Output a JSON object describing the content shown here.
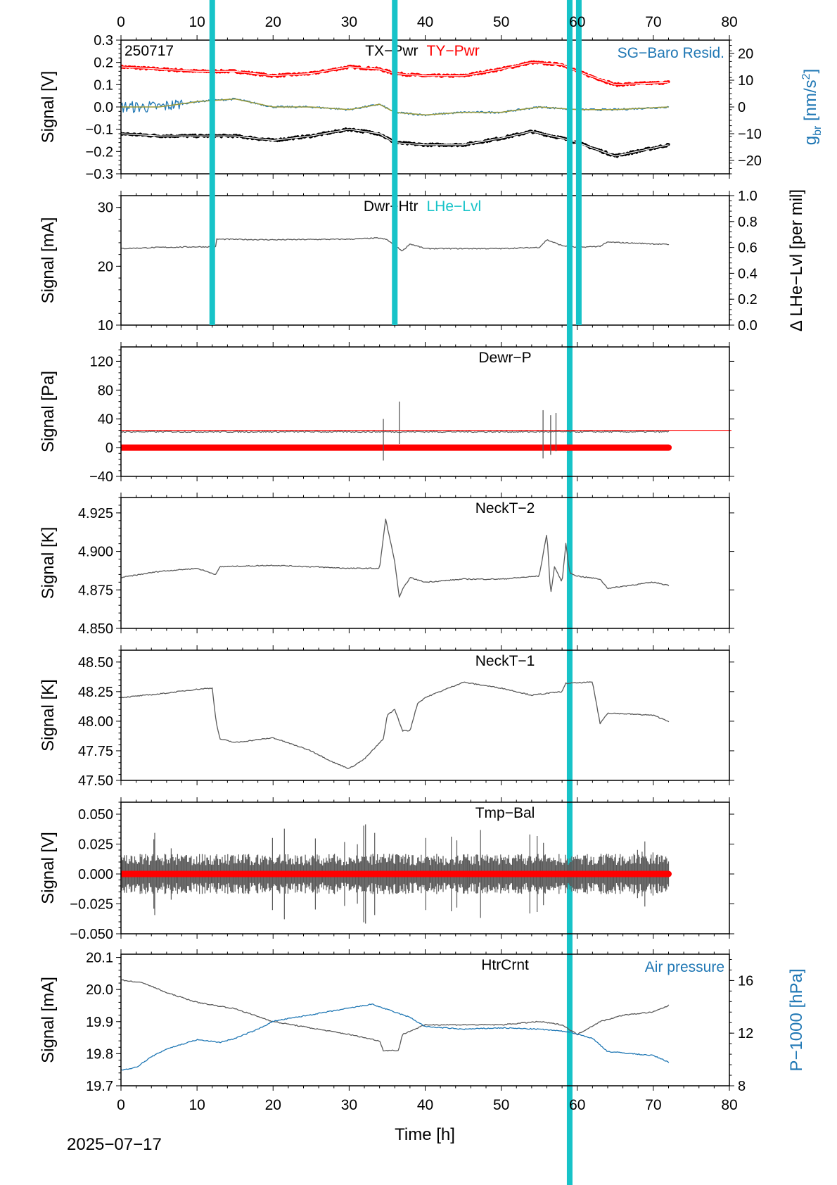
{
  "date_label": "2025−07−17",
  "time_label": "Time [h]",
  "x_ticks": [
    "0",
    "10",
    "20",
    "30",
    "40",
    "50",
    "60",
    "70",
    "80"
  ],
  "colors": {
    "black": "#000000",
    "red": "#ff0000",
    "blue": "#1f77b4",
    "cyan": "#17c3c8",
    "gray": "#5a5a5a",
    "olive": "#9a9a3a"
  },
  "chart_data": [
    {
      "type": "line",
      "id": "p1",
      "title": "TX−Pwr",
      "title2": "TY−Pwr",
      "stamp": "250717",
      "right_note": "SG−Baro Resid.",
      "ylabel": "Signal [V]",
      "ylabel_right": "g_br [nm/s^2]",
      "ylabel_right_main": "g",
      "ylabel_right_sub": "br",
      "ylabel_right_unit": " [nm/s",
      "ylabel_right_sup": "2",
      "ylabel_right_end": "]",
      "ylim": [
        -0.3,
        0.3
      ],
      "yticks": [
        "0.3",
        "0.2",
        "0.1",
        "0.0",
        "−0.1",
        "−0.2",
        "−0.3"
      ],
      "ylim_right": [
        -25,
        25
      ],
      "yticks_right": [
        "20",
        "10",
        "0",
        "−10",
        "−20"
      ],
      "xlim": [
        0,
        80
      ],
      "series": [
        {
          "name": "TY−Pwr",
          "color": "red",
          "x": [
            0,
            5,
            10,
            15,
            20,
            25,
            30,
            34,
            36,
            40,
            45,
            50,
            54,
            58,
            60,
            65,
            72
          ],
          "y": [
            0.18,
            0.17,
            0.16,
            0.16,
            0.14,
            0.15,
            0.18,
            0.17,
            0.15,
            0.14,
            0.14,
            0.17,
            0.2,
            0.19,
            0.16,
            0.1,
            0.11
          ]
        },
        {
          "name": "TX−Pwr",
          "color": "black",
          "x": [
            0,
            5,
            10,
            15,
            20,
            25,
            30,
            34,
            36,
            40,
            45,
            50,
            54,
            58,
            60,
            65,
            72
          ],
          "y": [
            -0.12,
            -0.13,
            -0.13,
            -0.13,
            -0.15,
            -0.13,
            -0.1,
            -0.12,
            -0.16,
            -0.17,
            -0.17,
            -0.14,
            -0.11,
            -0.14,
            -0.16,
            -0.22,
            -0.17
          ]
        },
        {
          "name": "SG−Baro Resid.",
          "color": "blue",
          "axis": "right",
          "x": [
            0,
            2,
            5,
            10,
            15,
            20,
            25,
            30,
            34,
            36,
            40,
            45,
            50,
            55,
            60,
            65,
            72
          ],
          "y": [
            0,
            0,
            0,
            2,
            3,
            0,
            0,
            -1,
            1,
            -2,
            -3,
            -2,
            -2,
            0,
            -1,
            -1,
            0
          ]
        }
      ]
    },
    {
      "type": "line",
      "id": "p2",
      "title": "Dwr−Htr",
      "title2": "LHe−Lvl",
      "ylabel": "Signal [mA]",
      "ylabel_right": "Δ LHe−Lvl [per mil]",
      "ylim": [
        10,
        32
      ],
      "yticks": [
        "30",
        "20",
        "10"
      ],
      "ylim_right": [
        0,
        1
      ],
      "yticks_right": [
        "1.0",
        "0.8",
        "0.6",
        "0.4",
        "0.2",
        "0.0"
      ],
      "xlim": [
        0,
        80
      ],
      "series": [
        {
          "name": "Dwr−Htr",
          "color": "gray",
          "x": [
            0,
            5,
            10,
            12.5,
            12.6,
            20,
            30,
            34,
            35,
            36,
            37,
            38,
            40,
            45,
            50,
            55,
            56,
            58,
            60,
            63,
            64,
            72
          ],
          "y": [
            23,
            23.2,
            23.3,
            23.3,
            24.6,
            24.5,
            24.6,
            24.8,
            24.5,
            23.5,
            22.6,
            23.8,
            23,
            23,
            23,
            23.2,
            24.5,
            23.5,
            23.2,
            23.4,
            24.1,
            23.7
          ]
        }
      ],
      "lhe_refill_hours": [
        12,
        36,
        59,
        60.2
      ]
    },
    {
      "type": "line",
      "id": "p3",
      "title": "Dewr−P",
      "ylabel": "Signal [Pa]",
      "ylim": [
        -40,
        140
      ],
      "yticks": [
        "120",
        "80",
        "40",
        "0",
        "−40"
      ],
      "xlim": [
        0,
        80
      ],
      "reference_level": 24,
      "series": [
        {
          "name": "Dewr−P",
          "color": "gray",
          "x": [
            0,
            72
          ],
          "y": [
            22,
            22
          ]
        },
        {
          "name": "zero",
          "color": "red",
          "x": [
            0,
            72
          ],
          "y": [
            0,
            0
          ]
        }
      ],
      "spikes": [
        {
          "x": 34.5,
          "lo": -18,
          "hi": 40
        },
        {
          "x": 36.6,
          "lo": 5,
          "hi": 64
        },
        {
          "x": 55.5,
          "lo": -15,
          "hi": 52
        },
        {
          "x": 56.5,
          "lo": -10,
          "hi": 45
        },
        {
          "x": 57.2,
          "lo": -5,
          "hi": 48
        }
      ]
    },
    {
      "type": "line",
      "id": "p4",
      "title": "NeckT−2",
      "ylabel": "Signal [K]",
      "ylim": [
        4.85,
        4.935
      ],
      "yticks": [
        "4.925",
        "4.900",
        "4.875",
        "4.850"
      ],
      "xlim": [
        0,
        80
      ],
      "series": [
        {
          "name": "NeckT−2",
          "color": "gray",
          "x": [
            0,
            5,
            10,
            12.5,
            13,
            20,
            25,
            30,
            34,
            34.8,
            35.5,
            36,
            36.6,
            37,
            38,
            40,
            45,
            50,
            55,
            56,
            56.5,
            57,
            58,
            58.5,
            59,
            60,
            63,
            64,
            70,
            72
          ],
          "y": [
            4.883,
            4.887,
            4.889,
            4.885,
            4.89,
            4.891,
            4.89,
            4.889,
            4.889,
            4.921,
            4.905,
            4.893,
            4.87,
            4.875,
            4.883,
            4.88,
            4.882,
            4.882,
            4.884,
            4.912,
            4.872,
            4.89,
            4.88,
            4.905,
            4.886,
            4.884,
            4.882,
            4.876,
            4.88,
            4.878
          ]
        }
      ]
    },
    {
      "type": "line",
      "id": "p5",
      "title": "NeckT−1",
      "ylabel": "Signal [K]",
      "ylim": [
        47.5,
        48.6
      ],
      "yticks": [
        "48.50",
        "48.25",
        "48.00",
        "47.75",
        "47.50"
      ],
      "xlim": [
        0,
        80
      ],
      "series": [
        {
          "name": "NeckT−1",
          "color": "gray",
          "x": [
            0,
            5,
            10,
            12,
            12.5,
            13,
            15,
            20,
            25,
            28,
            30,
            32,
            34.5,
            35,
            36,
            37,
            38,
            39,
            40,
            45,
            50,
            54,
            58,
            58.5,
            62,
            63,
            64,
            70,
            72
          ],
          "y": [
            48.2,
            48.23,
            48.27,
            48.28,
            48.0,
            47.85,
            47.82,
            47.86,
            47.75,
            47.65,
            47.6,
            47.68,
            47.85,
            48.05,
            48.1,
            47.92,
            47.92,
            48.15,
            48.2,
            48.33,
            48.28,
            48.22,
            48.25,
            48.32,
            48.33,
            47.98,
            48.07,
            48.05,
            48.0
          ]
        }
      ]
    },
    {
      "type": "line",
      "id": "p6",
      "title": "Tmp−Bal",
      "ylabel": "Signal [V]",
      "ylim": [
        -0.05,
        0.06
      ],
      "yticks": [
        "0.050",
        "0.025",
        "0.000",
        "−0.025",
        "−0.050"
      ],
      "xlim": [
        0,
        80
      ],
      "noise_amplitude": 0.012,
      "series": [
        {
          "name": "Tmp−Bal",
          "color": "gray",
          "x": [
            0,
            72
          ],
          "y": [
            0,
            0
          ]
        },
        {
          "name": "zero",
          "color": "red",
          "x": [
            0,
            72
          ],
          "y": [
            0,
            0
          ]
        }
      ]
    },
    {
      "type": "line",
      "id": "p7",
      "title": "HtrCrnt",
      "right_note": "Air pressure",
      "ylabel": "Signal [mA]",
      "ylabel_right": "P−1000 [hPa]",
      "ylim": [
        19.7,
        20.11
      ],
      "yticks": [
        "20.1",
        "20.0",
        "19.9",
        "19.8",
        "19.7"
      ],
      "ylim_right": [
        8,
        18
      ],
      "yticks_right": [
        "16",
        "12",
        "8"
      ],
      "xlim": [
        0,
        80
      ],
      "series": [
        {
          "name": "HtrCrnt",
          "color": "gray",
          "x": [
            0,
            3,
            6,
            10,
            15,
            20,
            25,
            30,
            34,
            34.5,
            36.5,
            37,
            40,
            45,
            50,
            55,
            58,
            60,
            63,
            66,
            70,
            72
          ],
          "y": [
            20.03,
            20.02,
            19.99,
            19.96,
            19.94,
            19.9,
            19.88,
            19.86,
            19.84,
            19.81,
            19.81,
            19.86,
            19.89,
            19.89,
            19.89,
            19.9,
            19.89,
            19.86,
            19.9,
            19.92,
            19.93,
            19.95
          ]
        },
        {
          "name": "Air pressure",
          "color": "blue",
          "axis": "right",
          "x": [
            0,
            2,
            4,
            6,
            10,
            13,
            15,
            18,
            20,
            25,
            30,
            33,
            35,
            38,
            40,
            45,
            50,
            55,
            59,
            62,
            64,
            66,
            70,
            72
          ],
          "y": [
            9.2,
            9.4,
            10.2,
            10.8,
            11.5,
            11.3,
            11.6,
            12.3,
            12.9,
            13.4,
            13.9,
            14.2,
            13.8,
            13.2,
            12.5,
            12.3,
            12.4,
            12.3,
            12.1,
            11.6,
            10.6,
            10.5,
            10.3,
            9.8
          ]
        }
      ]
    }
  ]
}
